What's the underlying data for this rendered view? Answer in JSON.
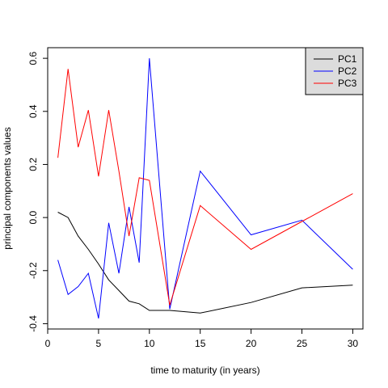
{
  "chart_data": {
    "type": "line",
    "title": "",
    "xlabel": "time to maturity (in years)",
    "ylabel": "principal components values",
    "xlim": [
      0,
      31
    ],
    "ylim": [
      -0.42,
      0.64
    ],
    "xticks": [
      0,
      5,
      10,
      15,
      20,
      25,
      30
    ],
    "yticks": [
      -0.4,
      -0.2,
      0.0,
      0.2,
      0.4,
      0.6
    ],
    "ytick_labels": [
      "-0.4",
      "-0.2",
      "0.0",
      "0.2",
      "0.4",
      "0.6"
    ],
    "grid": false,
    "legend_position": "top-right",
    "x": [
      1,
      2,
      3,
      4,
      5,
      6,
      7,
      8,
      9,
      10,
      12,
      15,
      20,
      25,
      30
    ],
    "series": [
      {
        "name": "PC1",
        "color": "#000000",
        "values": [
          0.02,
          0.0,
          -0.07,
          -0.12,
          -0.175,
          -0.235,
          -0.275,
          -0.315,
          -0.325,
          -0.35,
          -0.35,
          -0.36,
          -0.32,
          -0.265,
          -0.255
        ]
      },
      {
        "name": "PC2",
        "color": "#0000ff",
        "values": [
          -0.16,
          -0.29,
          -0.26,
          -0.21,
          -0.38,
          -0.02,
          -0.21,
          0.04,
          -0.17,
          0.6,
          -0.345,
          0.175,
          -0.065,
          -0.01,
          -0.195
        ]
      },
      {
        "name": "PC3",
        "color": "#ff0000",
        "values": [
          0.225,
          0.56,
          0.265,
          0.405,
          0.155,
          0.405,
          0.175,
          -0.07,
          0.15,
          0.14,
          -0.33,
          0.045,
          -0.12,
          -0.015,
          0.09
        ]
      }
    ]
  }
}
